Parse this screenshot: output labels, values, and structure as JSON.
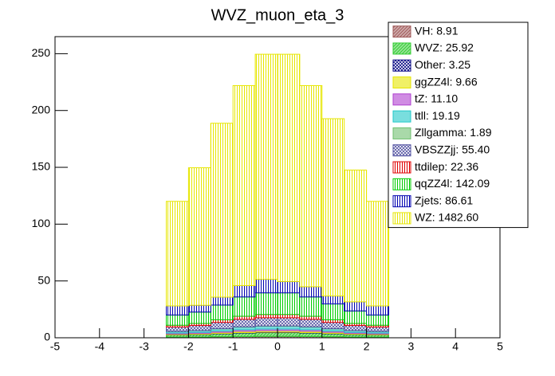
{
  "chart_data": {
    "type": "stacked_histogram",
    "title": "WVZ_muon_eta_3",
    "bins": [
      -2.5,
      -2,
      -1.5,
      -1,
      -0.5,
      0,
      0.5,
      1,
      1.5,
      2,
      2.5
    ],
    "xlim": [
      -5,
      5
    ],
    "xticks": [
      -5,
      -4,
      -3,
      -2,
      -1,
      0,
      1,
      2,
      3,
      4,
      5
    ],
    "ylim": [
      0,
      265
    ],
    "yticks": [
      0,
      50,
      100,
      150,
      200,
      250
    ],
    "legend": "upper right",
    "series": [
      {
        "name": "VH: 8.91",
        "color": "#a05a5a",
        "fill_style": "hatch",
        "values": [
          0.62,
          0.71,
          0.89,
          1.07,
          1.16,
          1.16,
          1.07,
          0.89,
          0.71,
          0.62
        ]
      },
      {
        "name": "WVZ: 25.92",
        "color": "#33cc33",
        "fill_style": "hatch",
        "values": [
          1.81,
          2.07,
          2.59,
          3.11,
          3.37,
          3.37,
          3.11,
          2.59,
          2.07,
          1.81
        ]
      },
      {
        "name": "Other: 3.25",
        "color": "#000080",
        "fill_style": "cross",
        "values": [
          0.23,
          0.26,
          0.33,
          0.39,
          0.42,
          0.42,
          0.39,
          0.33,
          0.26,
          0.23
        ]
      },
      {
        "name": "ggZZ4l: 9.66",
        "color": "#e6e600",
        "fill_style": "solid",
        "values": [
          0.68,
          0.77,
          0.97,
          1.16,
          1.26,
          1.26,
          1.16,
          0.97,
          0.77,
          0.68
        ]
      },
      {
        "name": "tZ: 11.10",
        "color": "#b040d0",
        "fill_style": "solid",
        "values": [
          0.78,
          0.89,
          1.11,
          1.33,
          1.44,
          1.44,
          1.33,
          1.11,
          0.89,
          0.78
        ]
      },
      {
        "name": "ttll: 19.19",
        "color": "#20c8c8",
        "fill_style": "solid",
        "values": [
          1.34,
          1.54,
          1.92,
          2.3,
          2.49,
          2.49,
          2.3,
          1.92,
          1.54,
          1.34
        ]
      },
      {
        "name": "Zllgamma: 1.89",
        "color": "#70c070",
        "fill_style": "solid",
        "values": [
          0.13,
          0.15,
          0.19,
          0.23,
          0.25,
          0.25,
          0.23,
          0.19,
          0.15,
          0.13
        ]
      },
      {
        "name": "VBSZZjj: 55.40",
        "color": "#5050a0",
        "fill_style": "cross",
        "values": [
          3.88,
          4.43,
          5.54,
          6.65,
          7.2,
          7.2,
          6.65,
          5.54,
          4.43,
          3.88
        ]
      },
      {
        "name": "ttdilep: 22.36",
        "color": "#e00000",
        "fill_style": "vlines",
        "values": [
          1.57,
          1.79,
          2.24,
          2.68,
          2.91,
          2.91,
          2.68,
          2.24,
          1.79,
          1.57
        ]
      },
      {
        "name": "qqZZ4l: 142.09",
        "color": "#00cc00",
        "fill_style": "vlines",
        "values": [
          9,
          10,
          13,
          17,
          19,
          19,
          17,
          14,
          11,
          9
        ]
      },
      {
        "name": "Zjets: 86.61",
        "color": "#0000b0",
        "fill_style": "vlines",
        "values": [
          8,
          6,
          7,
          10,
          12,
          10,
          9,
          7,
          8,
          8
        ]
      },
      {
        "name": "WZ: 1482.60",
        "color": "#e6e600",
        "fill_style": "vlines",
        "values": [
          92,
          121,
          153,
          176,
          198,
          200,
          177,
          156,
          116,
          92
        ]
      }
    ]
  }
}
